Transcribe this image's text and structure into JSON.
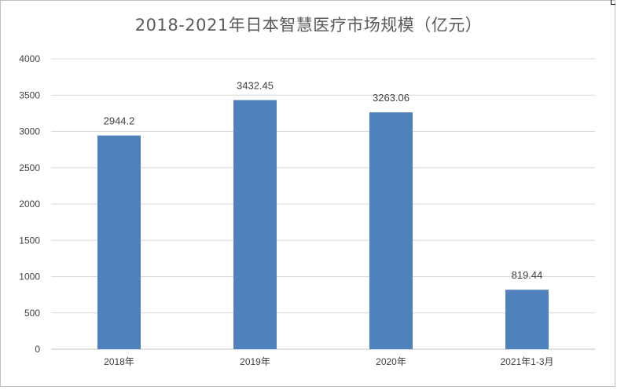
{
  "chart_data": {
    "type": "bar",
    "title": "2018-2021年日本智慧医疗市场规模（亿元）",
    "categories": [
      "2018年",
      "2019年",
      "2020年",
      "2021年1-3月"
    ],
    "values": [
      2944.2,
      3432.45,
      3263.06,
      819.44
    ],
    "value_labels": [
      "2944.2",
      "3432.45",
      "3263.06",
      "819.44"
    ],
    "ylim": [
      0,
      4000
    ],
    "yticks": [
      "0",
      "500",
      "1000",
      "1500",
      "2000",
      "2500",
      "3000",
      "3500",
      "4000"
    ],
    "grid": true,
    "legend": "none",
    "bar_color": "#4f81bd",
    "grid_color": "#d9d9d9"
  }
}
